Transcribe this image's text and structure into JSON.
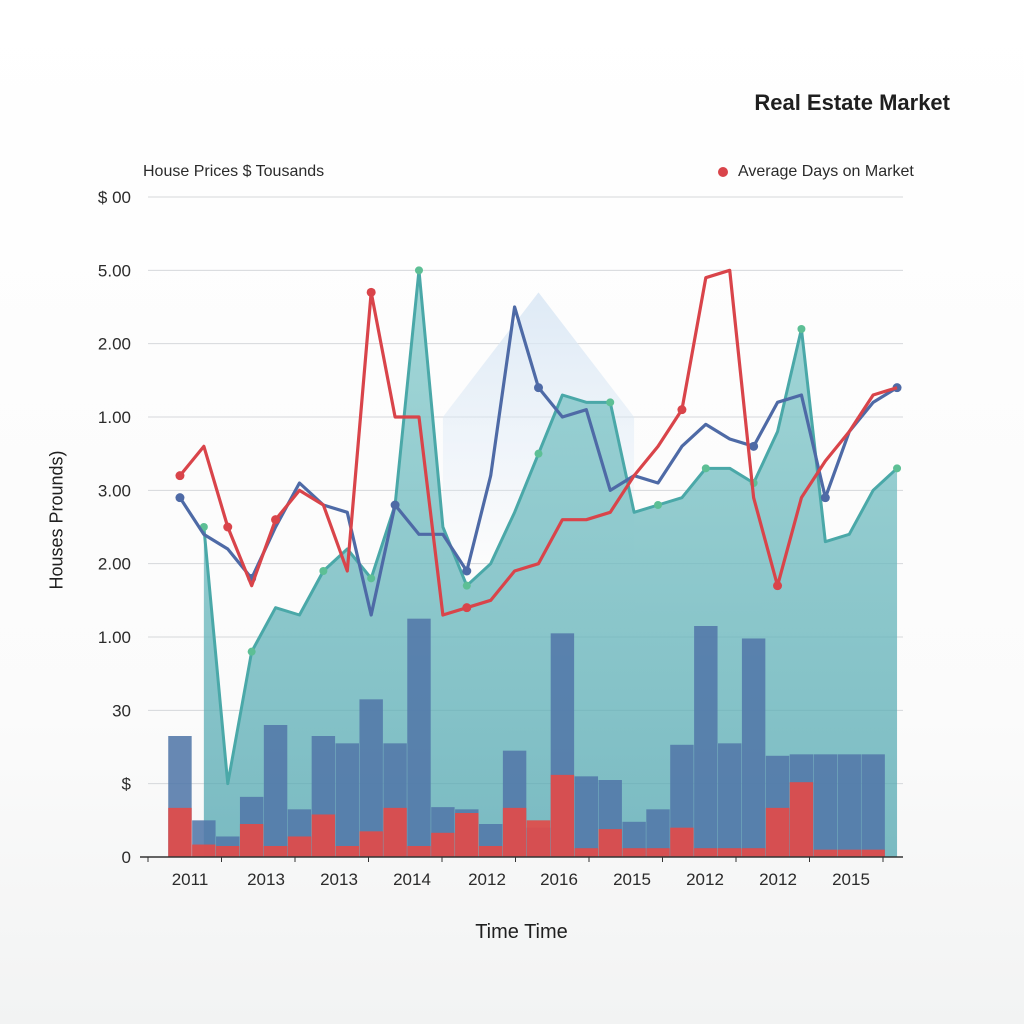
{
  "chart_data": {
    "type": "bar",
    "title": "Real Estate Market",
    "subtitle": "House Prices $ Tousands",
    "legend": [
      {
        "label": "Average Days on Market",
        "color": "#d9444a"
      }
    ],
    "ylabel": "Houses Prounds)",
    "xlabel": "Time Time",
    "y_tick_labels": [
      "0",
      "$",
      "30",
      "1.00",
      "2.00",
      "3.00",
      "1.00",
      "2.00",
      "5.00",
      "$ 00"
    ],
    "ylim": [
      0,
      9
    ],
    "x_tick_labels": [
      "2011",
      "2013",
      "2013",
      "2014",
      "2012",
      "2016",
      "2015",
      "2012",
      "2012",
      "2015"
    ],
    "categories": [
      "2011",
      "",
      "",
      "2013",
      "",
      "",
      "2013",
      "",
      "",
      "2014",
      "",
      "",
      "2012",
      "",
      "",
      "2016",
      "",
      "",
      "2015",
      "",
      "",
      "2012",
      "",
      "",
      "",
      "",
      "",
      "2012",
      "",
      "",
      "2015"
    ],
    "series": [
      {
        "type": "area",
        "color": "#5fb3b8",
        "values": [
          null,
          4.5,
          1.0,
          2.8,
          3.4,
          3.3,
          3.9,
          4.2,
          3.8,
          4.8,
          8.0,
          4.5,
          3.7,
          4.0,
          4.7,
          5.5,
          6.3,
          6.2,
          6.2,
          4.7,
          4.8,
          4.9,
          5.3,
          5.3,
          5.1,
          5.8,
          7.2,
          4.3,
          4.4,
          5.0,
          5.3
        ]
      },
      {
        "type": "bar",
        "color": "#5278a8",
        "values": [
          1.65,
          0.5,
          0.28,
          0.82,
          1.8,
          0.65,
          1.65,
          1.55,
          2.15,
          1.55,
          3.25,
          0.68,
          0.65,
          0.45,
          1.45,
          0.4,
          3.05,
          1.1,
          1.05,
          0.48,
          0.65,
          1.53,
          3.15,
          1.55,
          2.98,
          1.38,
          1.4,
          1.4,
          1.4,
          1.4,
          null
        ]
      },
      {
        "type": "bar",
        "color": "#e14b49",
        "values": [
          0.67,
          0.17,
          0.15,
          0.45,
          0.15,
          0.28,
          0.58,
          0.15,
          0.35,
          0.67,
          0.15,
          0.33,
          0.6,
          0.15,
          0.67,
          0.5,
          1.12,
          0.12,
          0.38,
          0.12,
          0.12,
          0.4,
          0.12,
          0.12,
          0.12,
          0.67,
          1.02,
          0.1,
          0.1,
          0.1,
          null
        ]
      },
      {
        "type": "line",
        "color": "#4e6aa6",
        "values": [
          4.9,
          4.4,
          4.2,
          3.8,
          4.5,
          5.1,
          4.8,
          4.7,
          3.3,
          4.8,
          4.4,
          4.4,
          3.9,
          5.2,
          7.5,
          6.4,
          6.0,
          6.1,
          5.0,
          5.2,
          5.1,
          5.6,
          5.9,
          5.7,
          5.6,
          6.2,
          6.3,
          4.9,
          5.8,
          6.2,
          6.4
        ]
      },
      {
        "type": "line",
        "color": "#d9444a",
        "values": [
          5.2,
          5.6,
          4.5,
          3.7,
          4.6,
          5.0,
          4.8,
          3.9,
          7.7,
          6.0,
          6.0,
          3.3,
          3.4,
          3.5,
          3.9,
          4.0,
          4.6,
          4.6,
          4.7,
          5.2,
          5.6,
          6.1,
          7.9,
          8.0,
          4.9,
          3.7,
          4.9,
          5.4,
          5.8,
          6.3,
          6.4
        ]
      }
    ]
  }
}
